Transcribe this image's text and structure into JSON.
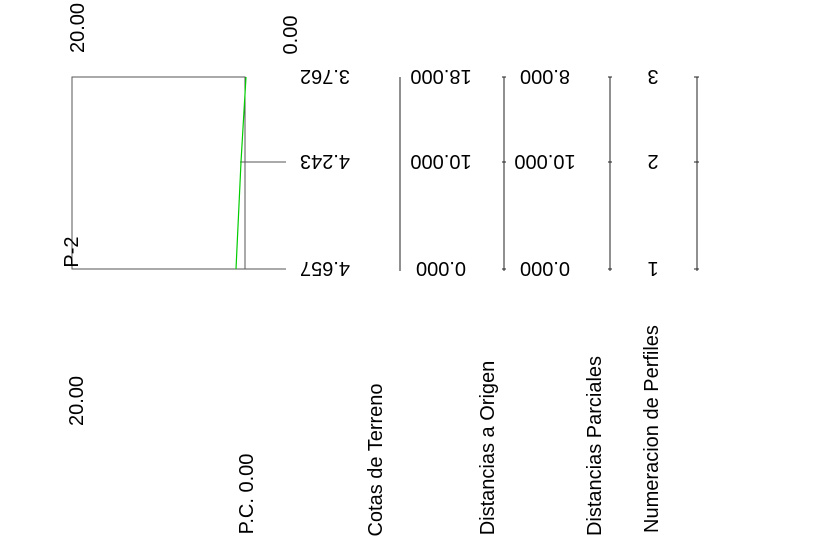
{
  "profile": {
    "name": "P-2",
    "top_scale_label": "20.00",
    "top_zero_label": "0.00",
    "bottom_scale_label": "20.00",
    "datum_label": "P.C. 0.00",
    "line_color": "#00cc00",
    "frame_color": "#555555"
  },
  "rows": {
    "cotas": {
      "label": "Cotas de Terreno",
      "values": [
        "3.762",
        "4.243",
        "4.657"
      ]
    },
    "origen": {
      "label": "Distancias a Origen",
      "values": [
        "18.000",
        "10.000",
        "0.000"
      ]
    },
    "parciales": {
      "label": "Distancias Parciales",
      "values": [
        "8.000",
        "10.000",
        "0.000"
      ]
    },
    "perfiles": {
      "label": "Numeracion de Perfiles",
      "values": [
        "3",
        "2",
        "1"
      ]
    }
  }
}
